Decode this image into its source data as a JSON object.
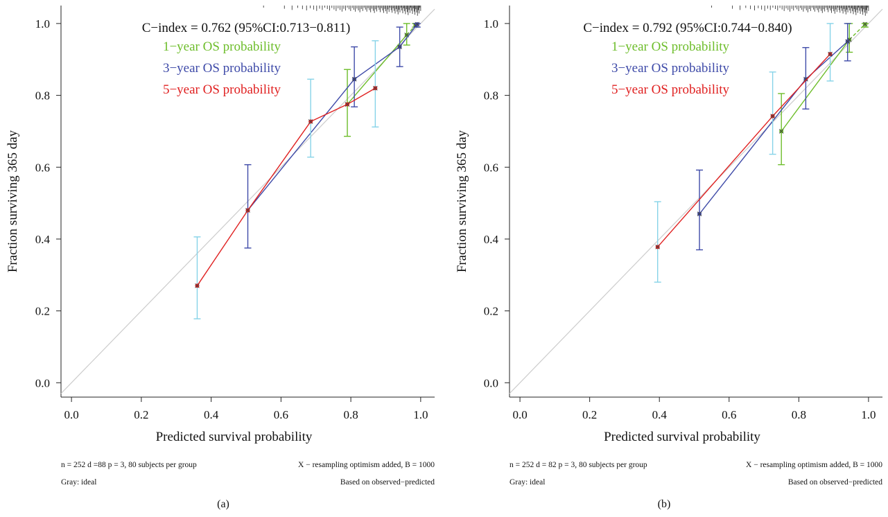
{
  "colors": {
    "one_year": "#6dbd2a",
    "three_year": "#3e4aa8",
    "five_year": "#e02020",
    "ci_light": "#86d3e8",
    "ideal": "#cccccc"
  },
  "chart_data": [
    {
      "type": "line",
      "panel_label": "(a)",
      "xlabel": "Predicted survival probability",
      "ylabel": "Fraction surviving 365 day",
      "xlim": [
        -0.03,
        1.04
      ],
      "ylim": [
        -0.04,
        1.05
      ],
      "xticks": [
        "0.0",
        "0.2",
        "0.4",
        "0.6",
        "0.8",
        "1.0"
      ],
      "yticks": [
        "0.0",
        "0.2",
        "0.4",
        "0.6",
        "0.8",
        "1.0"
      ],
      "grid": false,
      "legend_position": "top-center",
      "cindex_text": "C−index = 0.762 (95%CI:0.713−0.811)",
      "footer": {
        "left_line1": "n = 252 d =88 p = 3, 80 subjects per group",
        "left_line2": "Gray: ideal",
        "right_line1": "X − resampling optimism added, B = 1000",
        "right_line2": "Based on observed−predicted"
      },
      "series": [
        {
          "name": "1−year OS probability",
          "color_key": "one_year",
          "x": [
            0.79,
            0.96,
            0.985
          ],
          "y": [
            0.775,
            0.968,
            0.995
          ],
          "err_low": [
            0.686,
            0.94,
            0.99
          ],
          "err_high": [
            0.872,
            1.0,
            1.0
          ],
          "dashed_segments": [
            1
          ]
        },
        {
          "name": "3−year OS probability",
          "color_key": "three_year",
          "x": [
            0.505,
            0.81,
            0.94,
            0.99
          ],
          "y": [
            0.48,
            0.845,
            0.935,
            0.998
          ],
          "err_low": [
            0.375,
            0.768,
            0.88,
            0.99
          ],
          "err_high": [
            0.607,
            0.935,
            0.99,
            1.0
          ],
          "err_color_keys": [
            "three_year",
            "three_year",
            "three_year",
            "three_year"
          ]
        },
        {
          "name": "5−year OS probability",
          "color_key": "five_year",
          "x": [
            0.36,
            0.505,
            0.685,
            0.79,
            0.87
          ],
          "y": [
            0.27,
            0.48,
            0.727,
            0.775,
            0.82
          ],
          "err_low": [
            0.178,
            null,
            0.628,
            null,
            0.712
          ],
          "err_high": [
            0.406,
            null,
            0.845,
            null,
            0.952
          ],
          "err_color_keys": [
            "ci_light",
            null,
            "ci_light",
            null,
            "ci_light"
          ]
        }
      ]
    },
    {
      "type": "line",
      "panel_label": "(b)",
      "xlabel": "Predicted survival probability",
      "ylabel": "Fraction surviving 365 day",
      "xlim": [
        -0.03,
        1.04
      ],
      "ylim": [
        -0.04,
        1.05
      ],
      "xticks": [
        "0.0",
        "0.2",
        "0.4",
        "0.6",
        "0.8",
        "1.0"
      ],
      "yticks": [
        "0.0",
        "0.2",
        "0.4",
        "0.6",
        "0.8",
        "1.0"
      ],
      "grid": false,
      "legend_position": "top-center",
      "cindex_text": "C−index = 0.792 (95%CI:0.744−0.840)",
      "footer": {
        "left_line1": "n = 252 d = 82 p = 3, 80 subjects per group",
        "left_line2": "Gray: ideal",
        "right_line1": "X − resampling optimism added, B = 1000",
        "right_line2": "Based on observed−predicted"
      },
      "series": [
        {
          "name": "1−year OS probability",
          "color_key": "one_year",
          "x": [
            0.75,
            0.945,
            0.99
          ],
          "y": [
            0.7,
            0.955,
            0.998
          ],
          "err_low": [
            0.607,
            0.92,
            0.99
          ],
          "err_high": [
            0.805,
            1.0,
            1.0
          ],
          "dashed_segments": [
            1
          ]
        },
        {
          "name": "3−year OS probability",
          "color_key": "three_year",
          "x": [
            0.515,
            0.82,
            0.94
          ],
          "y": [
            0.47,
            0.845,
            0.95
          ],
          "err_low": [
            0.37,
            0.762,
            0.896
          ],
          "err_high": [
            0.592,
            0.933,
            1.0
          ],
          "err_color_keys": [
            "three_year",
            "three_year",
            "three_year"
          ]
        },
        {
          "name": "5−year OS probability",
          "color_key": "five_year",
          "x": [
            0.395,
            0.725,
            0.89
          ],
          "y": [
            0.378,
            0.742,
            0.915
          ],
          "err_low": [
            0.28,
            0.636,
            0.84
          ],
          "err_high": [
            0.504,
            0.865,
            1.0
          ],
          "err_color_keys": [
            "ci_light",
            "ci_light",
            "ci_light"
          ]
        }
      ]
    }
  ]
}
